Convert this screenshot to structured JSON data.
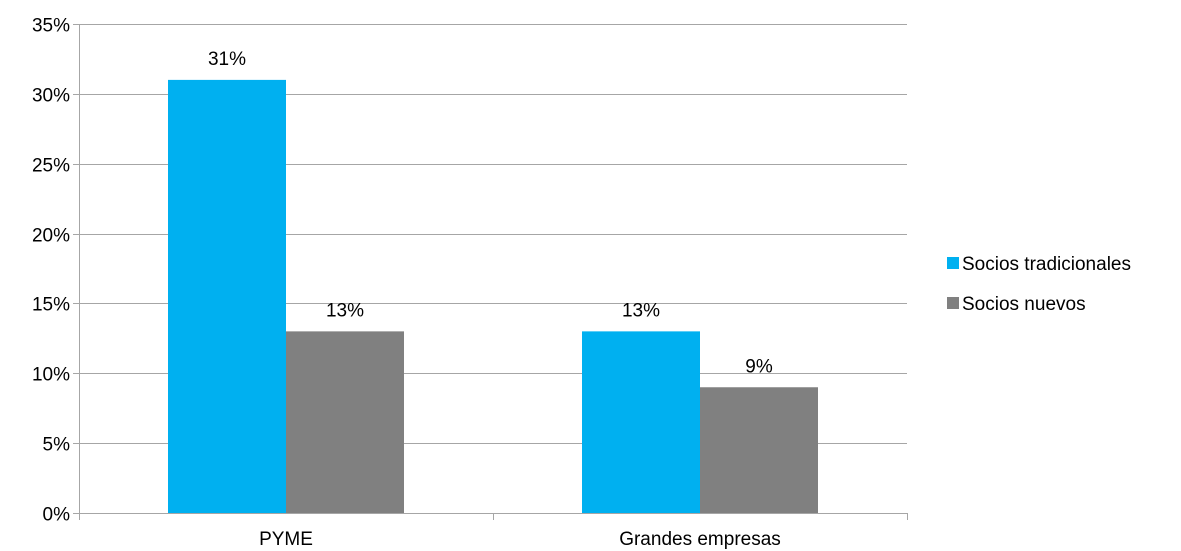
{
  "chart_data": {
    "type": "bar",
    "categories": [
      "PYME",
      "Grandes empresas"
    ],
    "series": [
      {
        "name": "Socios tradicionales",
        "values": [
          31,
          13
        ],
        "labels": [
          "31%",
          "13%"
        ],
        "color": "#00B0F0"
      },
      {
        "name": "Socios nuevos",
        "values": [
          13,
          9
        ],
        "labels": [
          "13%",
          "9%"
        ],
        "color": "#808080"
      }
    ],
    "yticks": [
      0,
      5,
      10,
      15,
      20,
      25,
      30,
      35
    ],
    "ytick_labels": [
      "0%",
      "5%",
      "10%",
      "15%",
      "20%",
      "25%",
      "30%",
      "35%"
    ],
    "ylim": [
      0,
      35
    ],
    "grid": true,
    "legend": "right",
    "gridline_color": "#A6A6A6"
  }
}
